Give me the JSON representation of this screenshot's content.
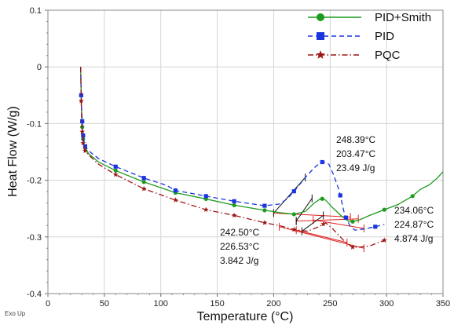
{
  "chart_data": {
    "type": "line",
    "xlabel": "Temperature (°C)",
    "ylabel": "Heat Flow (W/g)",
    "xlim": [
      0,
      350
    ],
    "ylim": [
      -0.4,
      0.1
    ],
    "x_ticks": [
      "0",
      "50",
      "100",
      "150",
      "200",
      "250",
      "300",
      "350"
    ],
    "y_ticks": [
      "0.1",
      "0",
      "-0.1",
      "-0.2",
      "-0.3",
      "-0.4"
    ],
    "grid": true,
    "legend_position": "top-right",
    "corner_note": "Exo Up",
    "series": [
      {
        "name": "PID+Smith",
        "color": "#1e9a1e",
        "line": "solid",
        "marker": "circle",
        "x": [
          29,
          29.3,
          29.6,
          30,
          30.5,
          31,
          31.8,
          33,
          36,
          45,
          60,
          85,
          113,
          140,
          165,
          192,
          205,
          218,
          228,
          236,
          242,
          246,
          252,
          260,
          266,
          270,
          276,
          285,
          298,
          310,
          323,
          330,
          338,
          345,
          350
        ],
        "y": [
          0,
          -0.03,
          -0.06,
          -0.09,
          -0.11,
          -0.125,
          -0.135,
          -0.143,
          -0.153,
          -0.168,
          -0.183,
          -0.203,
          -0.222,
          -0.233,
          -0.244,
          -0.253,
          -0.257,
          -0.26,
          -0.255,
          -0.24,
          -0.232,
          -0.235,
          -0.248,
          -0.263,
          -0.272,
          -0.273,
          -0.27,
          -0.262,
          -0.252,
          -0.243,
          -0.228,
          -0.216,
          -0.208,
          -0.196,
          -0.185
        ],
        "marker_x": [
          29.5,
          30.4,
          31.2,
          33,
          60,
          85,
          113,
          140,
          165,
          192,
          218,
          243,
          270,
          298,
          323
        ]
      },
      {
        "name": "PID",
        "color": "#1a35e0",
        "line": "dashed",
        "marker": "square",
        "x": [
          29,
          29.3,
          29.6,
          30,
          30.5,
          31,
          31.8,
          33,
          36,
          45,
          60,
          85,
          105,
          113,
          140,
          165,
          192,
          205,
          212,
          220,
          228,
          236,
          242,
          246,
          249,
          253,
          258,
          263,
          268,
          272,
          280,
          290,
          298
        ],
        "y": [
          0,
          -0.03,
          -0.06,
          -0.08,
          -0.1,
          -0.118,
          -0.13,
          -0.14,
          -0.148,
          -0.162,
          -0.176,
          -0.196,
          -0.209,
          -0.218,
          -0.228,
          -0.237,
          -0.245,
          -0.242,
          -0.233,
          -0.215,
          -0.195,
          -0.178,
          -0.168,
          -0.168,
          -0.172,
          -0.19,
          -0.218,
          -0.262,
          -0.282,
          -0.288,
          -0.286,
          -0.282,
          -0.278
        ],
        "marker_x": [
          29.5,
          30.4,
          31.2,
          33,
          60,
          85,
          113,
          140,
          165,
          192,
          218,
          243,
          259,
          264,
          290
        ]
      },
      {
        "name": "PQC",
        "color": "#9c1414",
        "line": "dashdot",
        "marker": "star",
        "x": [
          29,
          29.3,
          29.6,
          30,
          30.5,
          31,
          31.8,
          33,
          36,
          45,
          60,
          85,
          113,
          140,
          165,
          192,
          205,
          218,
          230,
          240,
          246,
          252,
          258,
          264,
          270,
          276,
          285,
          298
        ],
        "y": [
          0,
          -0.04,
          -0.07,
          -0.1,
          -0.118,
          -0.132,
          -0.142,
          -0.148,
          -0.155,
          -0.172,
          -0.19,
          -0.215,
          -0.235,
          -0.252,
          -0.262,
          -0.275,
          -0.28,
          -0.287,
          -0.29,
          -0.282,
          -0.275,
          -0.285,
          -0.298,
          -0.31,
          -0.318,
          -0.318,
          -0.316,
          -0.306
        ],
        "marker_x": [
          29.5,
          30.4,
          31.2,
          33,
          60,
          85,
          113,
          140,
          165,
          192,
          218,
          244,
          270,
          298
        ]
      }
    ],
    "annotations": [
      {
        "lines": [
          "248.39°C",
          "203.47°C",
          "23.49 J/g"
        ],
        "color": "#111111"
      },
      {
        "lines": [
          "234.06°C",
          "224.87°C",
          "4.874 J/g"
        ],
        "color": "#111111"
      },
      {
        "lines": [
          "242.50°C",
          "226.53°C",
          "3.842 J/g"
        ],
        "color": "#111111"
      }
    ],
    "analysis_lines": [
      {
        "color": "#e02020",
        "x": [
          200,
          268
        ],
        "y": [
          -0.258,
          -0.265
        ]
      },
      {
        "color": "#e02020",
        "x": [
          220,
          275
        ],
        "y": [
          -0.272,
          -0.268
        ]
      },
      {
        "color": "#e02020",
        "x": [
          205,
          280
        ],
        "y": [
          -0.282,
          -0.32
        ]
      },
      {
        "color": "#e02020",
        "x": [
          220,
          265
        ],
        "y": [
          -0.288,
          -0.31
        ]
      },
      {
        "color": "#e02020",
        "x": [
          235,
          280
        ],
        "y": [
          -0.27,
          -0.285
        ]
      },
      {
        "color": "#111111",
        "x": [
          200,
          228
        ],
        "y": [
          -0.258,
          -0.195
        ]
      },
      {
        "color": "#111111",
        "x": [
          220,
          234
        ],
        "y": [
          -0.272,
          -0.232
        ]
      },
      {
        "color": "#111111",
        "x": [
          225,
          244
        ],
        "y": [
          -0.29,
          -0.262
        ]
      }
    ]
  }
}
